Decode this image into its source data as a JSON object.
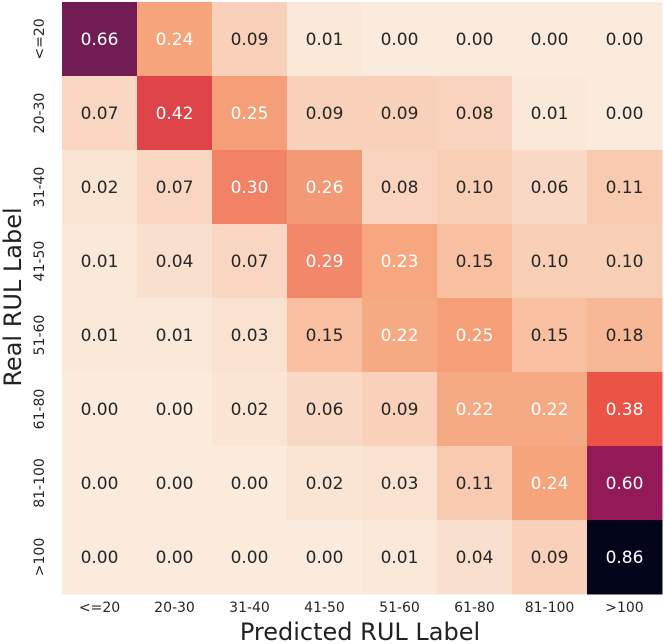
{
  "chart_data": {
    "type": "heatmap",
    "xlabel": "Predicted RUL Label",
    "ylabel": "Real RUL Label",
    "x_categories": [
      "<=20",
      "20-30",
      "31-40",
      "41-50",
      "51-60",
      "61-80",
      "81-100",
      ">100"
    ],
    "y_categories": [
      "<=20",
      "20-30",
      "31-40",
      "41-50",
      "51-60",
      "61-80",
      "81-100",
      ">100"
    ],
    "values": [
      [
        0.66,
        0.24,
        0.09,
        0.01,
        0.0,
        0.0,
        0.0,
        0.0
      ],
      [
        0.07,
        0.42,
        0.25,
        0.09,
        0.09,
        0.08,
        0.01,
        0.0
      ],
      [
        0.02,
        0.07,
        0.3,
        0.26,
        0.08,
        0.1,
        0.06,
        0.11
      ],
      [
        0.01,
        0.04,
        0.07,
        0.29,
        0.23,
        0.15,
        0.1,
        0.1
      ],
      [
        0.01,
        0.01,
        0.03,
        0.15,
        0.22,
        0.25,
        0.15,
        0.18
      ],
      [
        0.0,
        0.0,
        0.02,
        0.06,
        0.09,
        0.22,
        0.22,
        0.38
      ],
      [
        0.0,
        0.0,
        0.0,
        0.02,
        0.03,
        0.11,
        0.24,
        0.6
      ],
      [
        0.0,
        0.0,
        0.0,
        0.0,
        0.01,
        0.04,
        0.09,
        0.86
      ]
    ],
    "value_range": [
      0,
      0.86
    ],
    "colormap": "rocket_r",
    "colors": {
      "low": "#faebdd",
      "mid_low": "#f6a47c",
      "mid": "#ea4f43",
      "mid_high": "#ac1759",
      "high_mid": "#611f53",
      "high": "#03051a"
    },
    "grid": false
  }
}
